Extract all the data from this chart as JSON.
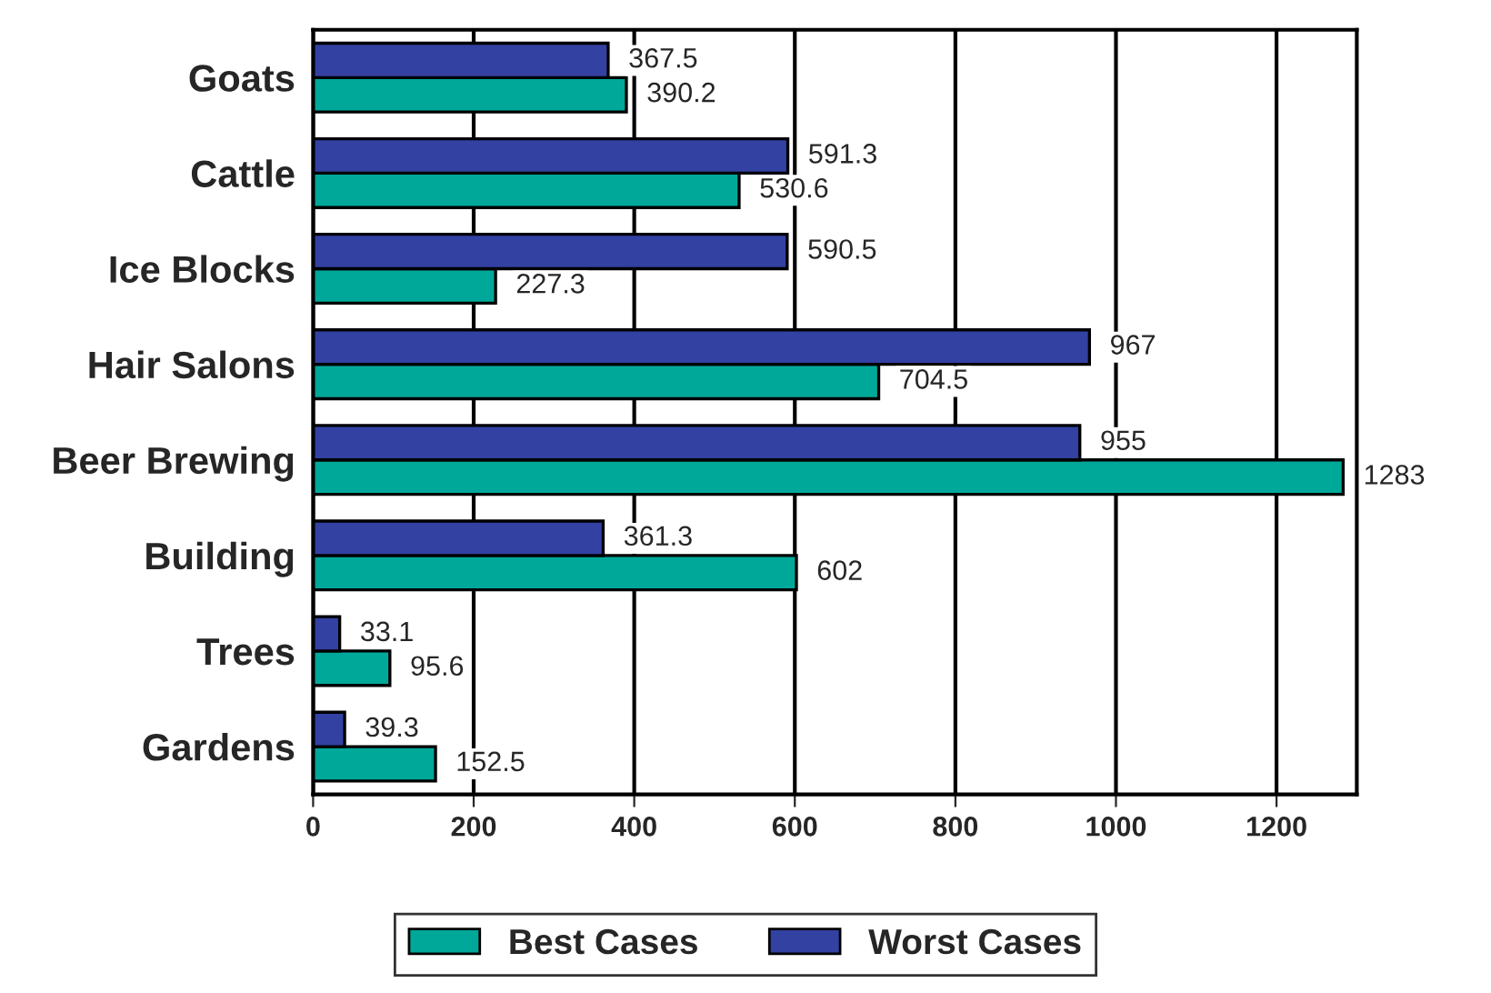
{
  "chart_data": {
    "type": "bar",
    "orientation": "horizontal",
    "categories": [
      "Goats",
      "Cattle",
      "Ice Blocks",
      "Hair Salons",
      "Beer Brewing",
      "Building",
      "Trees",
      "Gardens"
    ],
    "series": [
      {
        "name": "Best Cases",
        "color": "#00a89a",
        "values": [
          390.2,
          530.6,
          227.3,
          704.5,
          1283,
          602,
          95.6,
          152.5
        ]
      },
      {
        "name": "Worst Cases",
        "color": "#3341a3",
        "values": [
          367.5,
          591.3,
          590.5,
          967,
          955,
          361.3,
          33.1,
          39.3
        ]
      }
    ],
    "xlim": [
      0,
      1300
    ],
    "xticks": [
      0,
      200,
      400,
      600,
      800,
      1000,
      1200
    ],
    "grid": "x",
    "legend": "bottom",
    "data_labels": true
  }
}
